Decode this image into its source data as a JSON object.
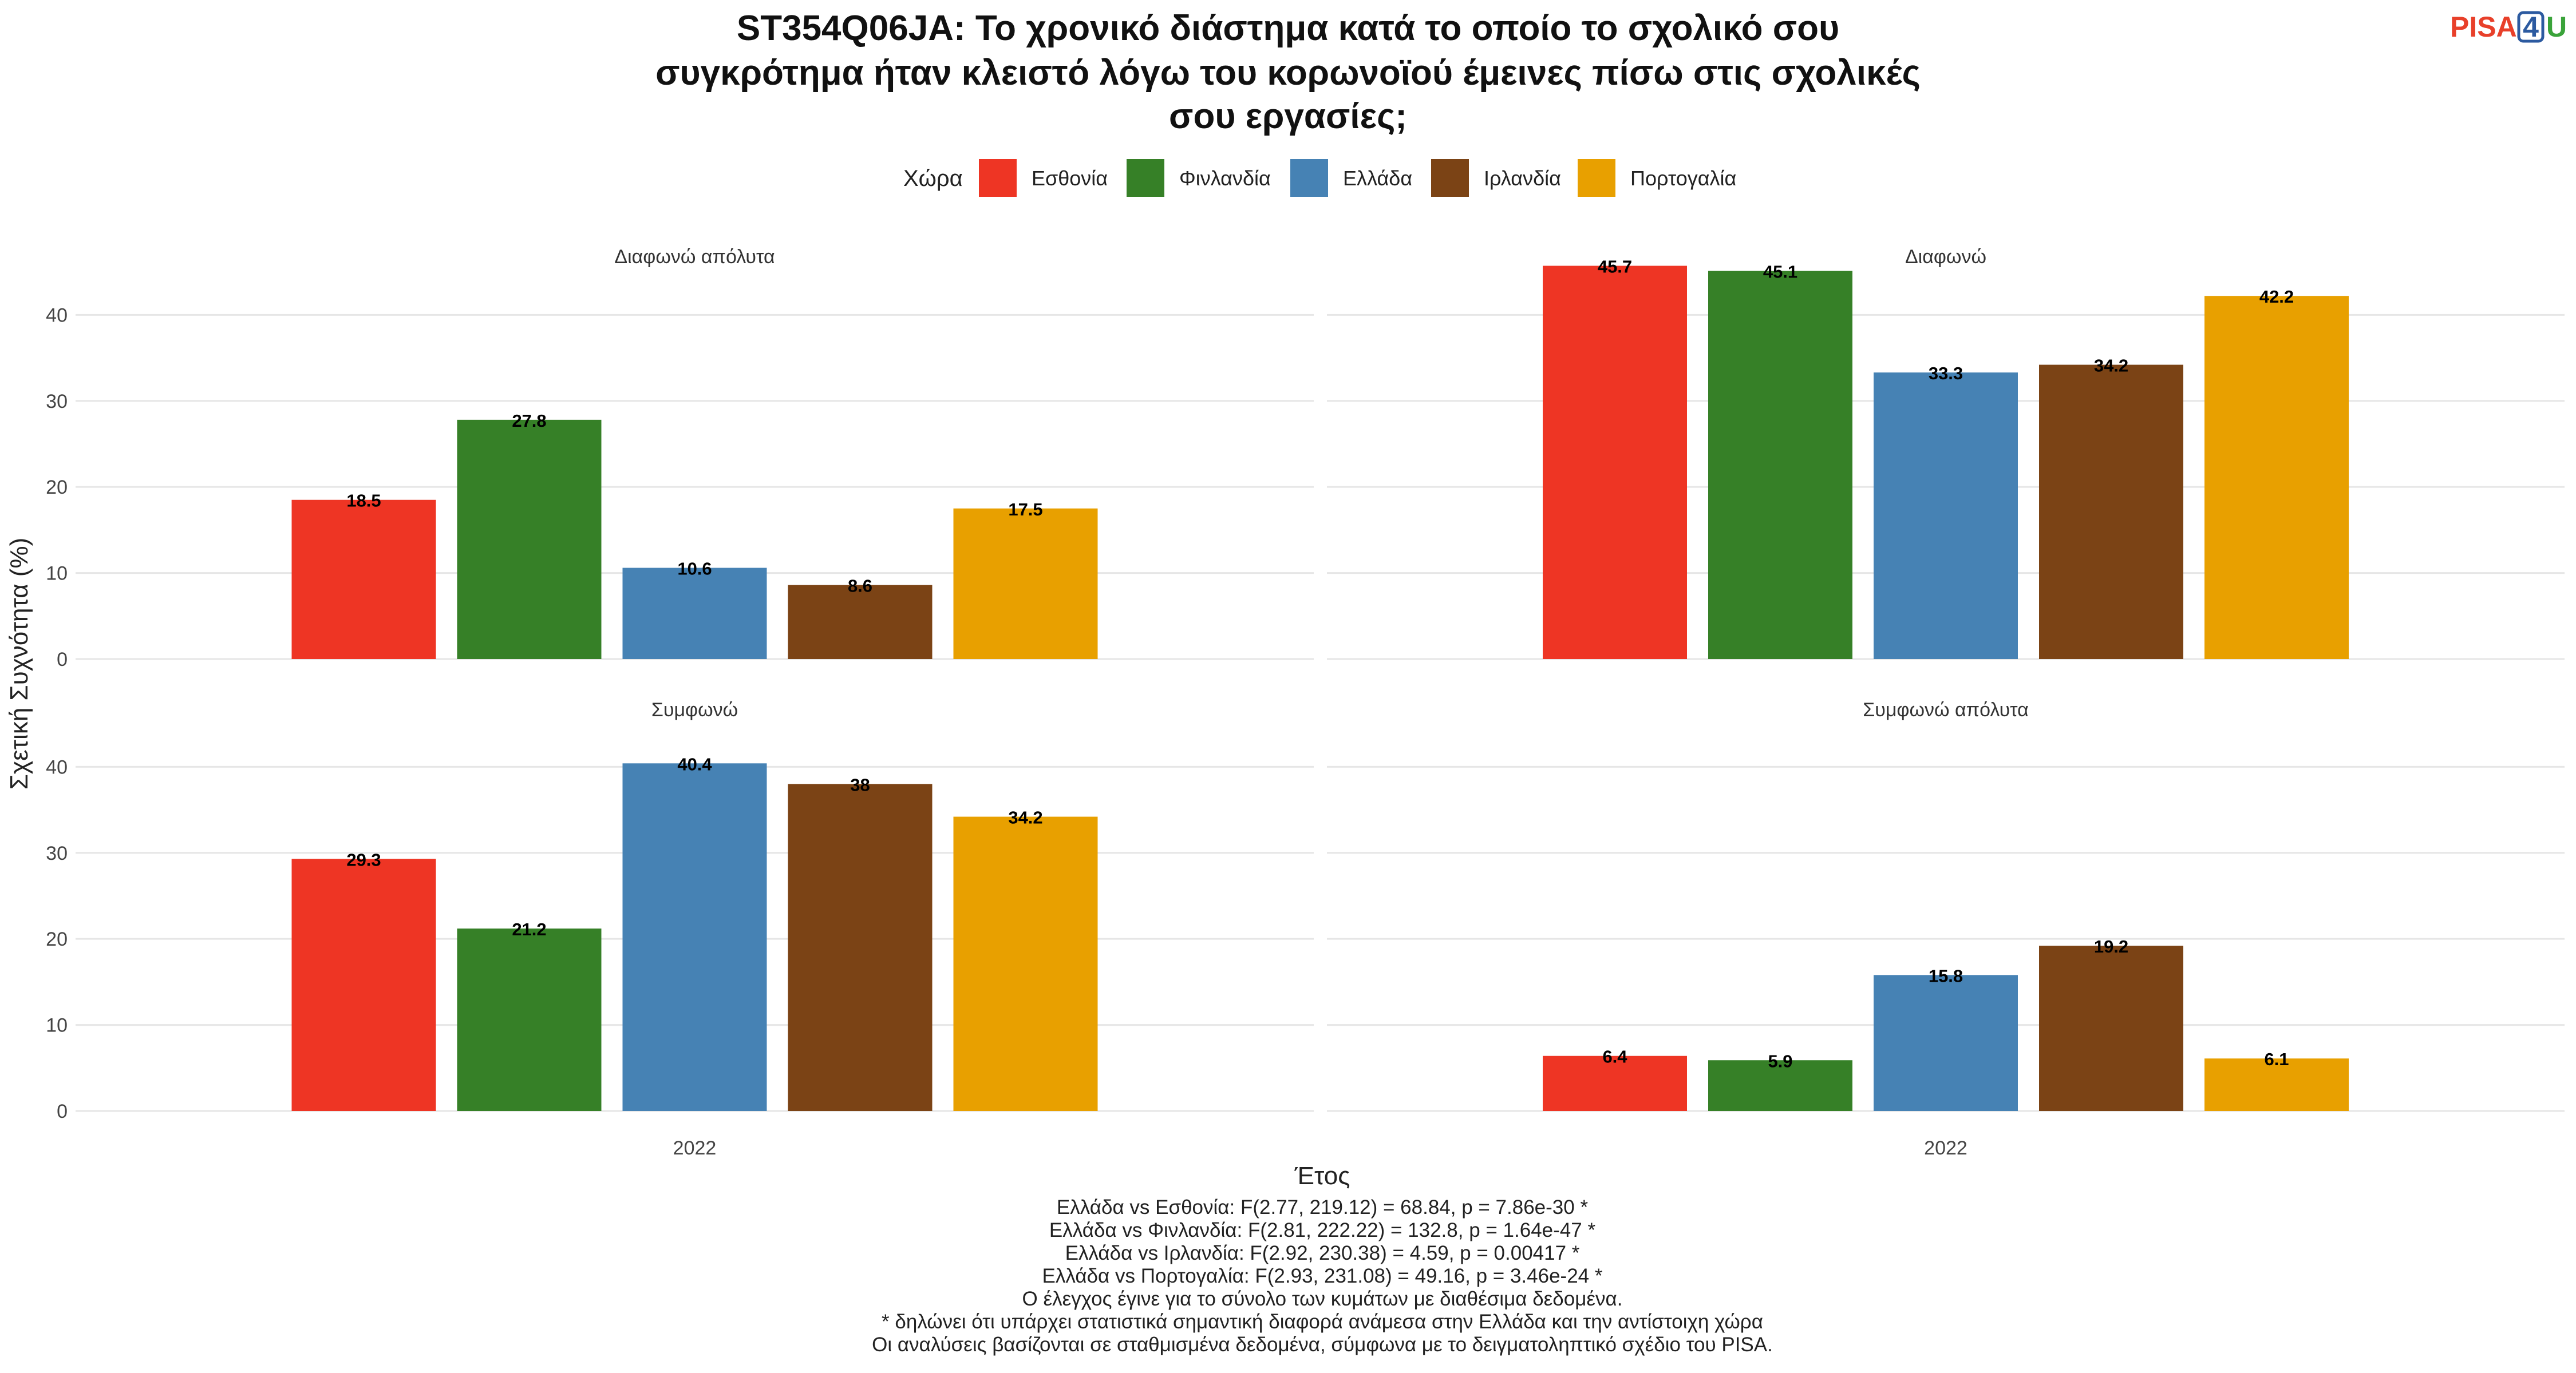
{
  "title_lines": [
    "ST354Q06JA: Το χρονικό διάστημα κατά το οποίο το σχολικό σου",
    "συγκρότημα ήταν κλειστό λόγω του κορωνοϊού έμεινες πίσω στις σχολικές",
    "σου εργασίες;"
  ],
  "logo": {
    "part1": "PISA",
    "part2": "4",
    "part3": "U"
  },
  "legend": {
    "title": "Χώρα",
    "position": "top",
    "items": [
      {
        "name": "Εσθονία",
        "color": "#EE3524"
      },
      {
        "name": "Φινλανδία",
        "color": "#368027"
      },
      {
        "name": "Ελλάδα",
        "color": "#4682B4"
      },
      {
        "name": "Ιρλανδία",
        "color": "#7B4315"
      },
      {
        "name": "Πορτογαλία",
        "color": "#E8A000"
      }
    ]
  },
  "y_axis_label": "Σχετική Συχνότητα (%)",
  "x_axis_label": "Έτος",
  "chart_data": {
    "type": "bar",
    "facets": [
      {
        "title": "Διαφωνώ απόλυτα",
        "x": "2022",
        "values": [
          18.5,
          27.8,
          10.6,
          8.6,
          17.5
        ],
        "labels": [
          "18.5",
          "27.8",
          "10.6",
          "8.6",
          "17.5"
        ]
      },
      {
        "title": "Διαφωνώ",
        "x": "2022",
        "values": [
          45.7,
          45.1,
          33.3,
          34.2,
          42.2
        ],
        "labels": [
          "45.7",
          "45.1",
          "33.3",
          "34.2",
          "42.2"
        ]
      },
      {
        "title": "Συμφωνώ",
        "x": "2022",
        "values": [
          29.3,
          21.2,
          40.4,
          38.0,
          34.2
        ],
        "labels": [
          "29.3",
          "21.2",
          "40.4",
          "38",
          "34.2"
        ]
      },
      {
        "title": "Συμφωνώ απόλυτα",
        "x": "2022",
        "values": [
          6.4,
          5.9,
          15.8,
          19.2,
          6.1
        ],
        "labels": [
          "6.4",
          "5.9",
          "15.8",
          "19.2",
          "6.1"
        ]
      }
    ],
    "series": [
      "Εσθονία",
      "Φινλανδία",
      "Ελλάδα",
      "Ιρλανδία",
      "Πορτογαλία"
    ],
    "ylim": [
      0,
      48
    ],
    "yticks": [
      0,
      10,
      20,
      30,
      40
    ],
    "grid": true
  },
  "notes": [
    "Ελλάδα vs Εσθονία: F(2.77, 219.12) = 68.84, p = 7.86e-30 *",
    "Ελλάδα vs Φινλανδία: F(2.81, 222.22) = 132.8, p = 1.64e-47 *",
    "Ελλάδα vs Ιρλανδία: F(2.92, 230.38) = 4.59, p = 0.00417 *",
    "Ελλάδα vs Πορτογαλία: F(2.93, 231.08) = 49.16, p = 3.46e-24 *",
    "Ο έλεγχος έγινε για το σύνολο των κυμάτων με διαθέσιμα δεδομένα.",
    "* δηλώνει ότι υπάρχει στατιστικά σημαντική διαφορά ανάμεσα στην Ελλάδα και την αντίστοιχη χώρα",
    "Οι αναλύσεις βασίζονται σε σταθμισμένα δεδομένα, σύμφωνα με το δειγματοληπτικό σχέδιο του PISA."
  ]
}
